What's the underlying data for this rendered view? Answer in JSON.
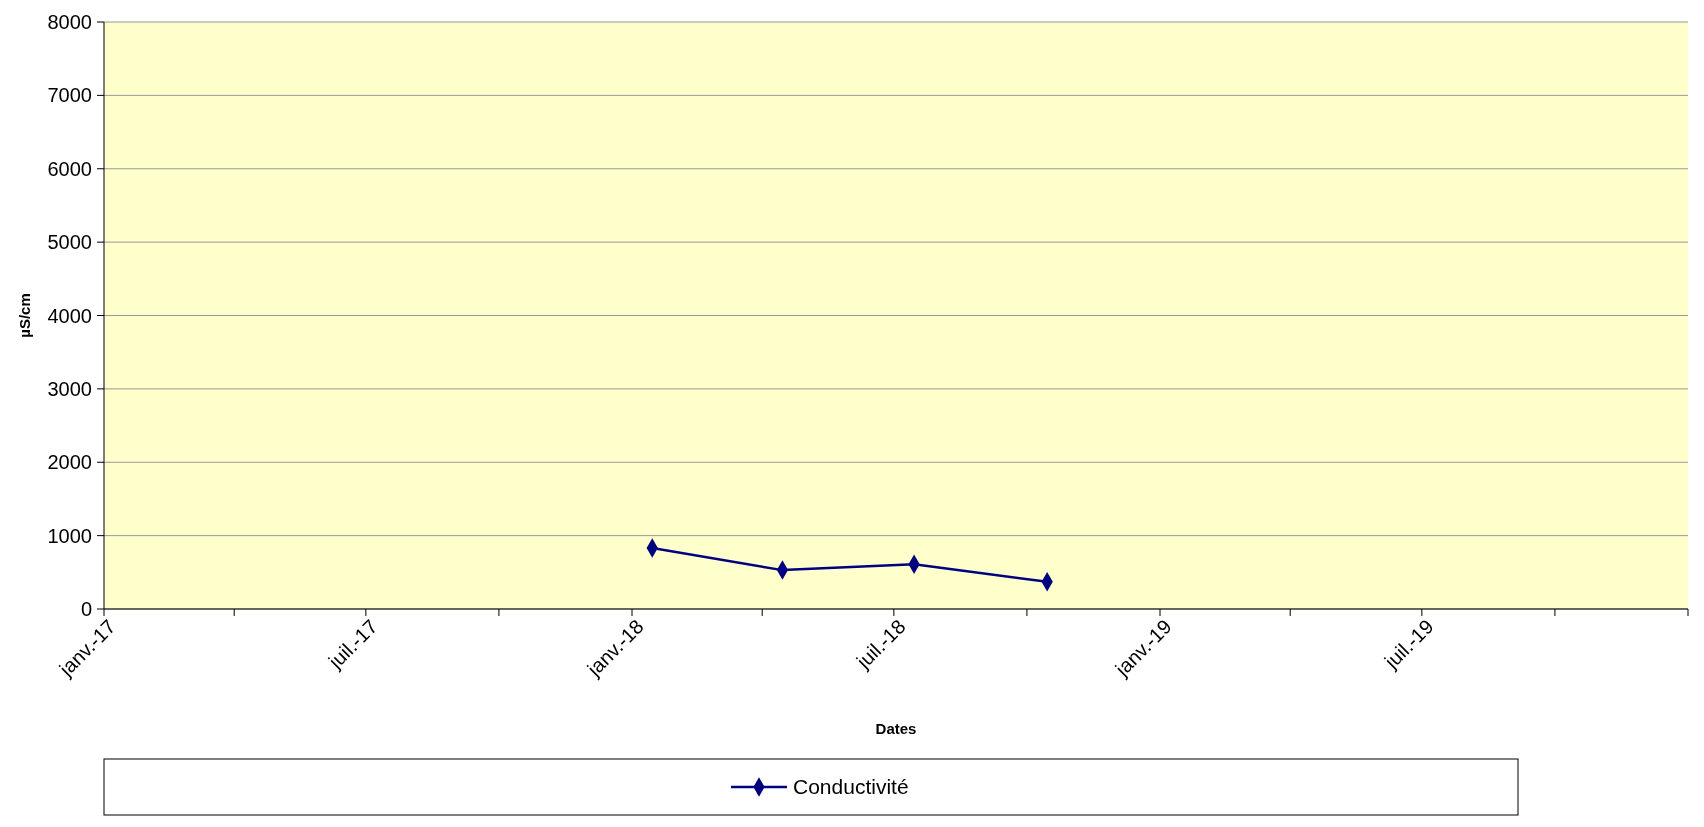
{
  "chart_data": {
    "type": "line",
    "xlabel": "Dates",
    "ylabel": "µS/cm",
    "x": [
      "2018-01-15",
      "2018-04-15",
      "2018-07-15",
      "2018-10-15"
    ],
    "series": [
      {
        "name": "Conductivité",
        "color": "#000080",
        "values": [
          830,
          530,
          610,
          370
        ]
      }
    ],
    "xlim": [
      "2017-01-01",
      "2020-01-01"
    ],
    "xticks": [
      {
        "value": "2017-01-01",
        "label": "janv.-17"
      },
      {
        "value": "2017-04-01",
        "label": null
      },
      {
        "value": "2017-07-01",
        "label": "juil.-17"
      },
      {
        "value": "2017-10-01",
        "label": null
      },
      {
        "value": "2018-01-01",
        "label": "janv.-18"
      },
      {
        "value": "2018-04-01",
        "label": null
      },
      {
        "value": "2018-07-01",
        "label": "juil.-18"
      },
      {
        "value": "2018-10-01",
        "label": null
      },
      {
        "value": "2019-01-01",
        "label": "janv.-19"
      },
      {
        "value": "2019-04-01",
        "label": null
      },
      {
        "value": "2019-07-01",
        "label": "juil.-19"
      },
      {
        "value": "2019-10-01",
        "label": null
      },
      {
        "value": "2020-01-01",
        "label": null
      }
    ],
    "ylim": [
      0,
      8000
    ],
    "yticks": [
      0,
      1000,
      2000,
      3000,
      4000,
      5000,
      6000,
      7000,
      8000
    ],
    "grid": "y",
    "legend": "bottom",
    "marker": "diamond",
    "line_style": "solid"
  }
}
